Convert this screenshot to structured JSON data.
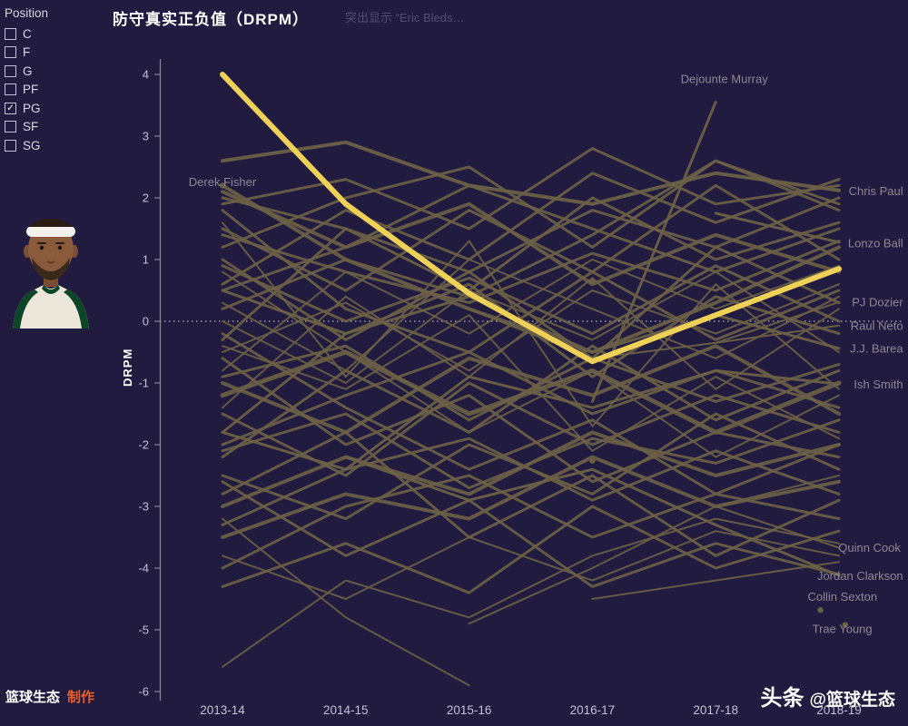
{
  "title": "防守真实正负值（DRPM）",
  "subtitle": "突出显示 “Eric Bleds…",
  "filter": {
    "title": "Position",
    "items": [
      {
        "label": "C",
        "checked": false
      },
      {
        "label": "F",
        "checked": false
      },
      {
        "label": "G",
        "checked": false
      },
      {
        "label": "PF",
        "checked": false
      },
      {
        "label": "PG",
        "checked": true
      },
      {
        "label": "SF",
        "checked": false
      },
      {
        "label": "SG",
        "checked": false
      }
    ]
  },
  "footer": {
    "brand": "篮球生态",
    "made_by": "制作",
    "toutiao": "头条",
    "handle": "@篮球生态"
  },
  "colors": {
    "background": "#211b3f",
    "line": "#6b6046",
    "highlight": "#f0d158",
    "label": "#8d8894",
    "axis_text": "#c6c1d6",
    "axis_line": "#8a8695",
    "title_text": "#ffffff",
    "subtitle_text": "#524d72",
    "accent_orange": "#e8602c"
  },
  "chart_data": {
    "type": "line",
    "title": "防守真实正负值（DRPM）",
    "xlabel": "",
    "ylabel": "DRPM",
    "ylim": [
      -6,
      4
    ],
    "yticks": [
      4,
      3,
      2,
      1,
      0,
      -1,
      -2,
      -3,
      -4,
      -5,
      -6
    ],
    "zero_line": true,
    "legend": "none",
    "x_categories": [
      "2013-14",
      "2014-15",
      "2015-16",
      "2016-17",
      "2017-18",
      "2018-19"
    ],
    "highlight_series": {
      "name": "Eric Bleds…",
      "values": [
        4.0,
        1.9,
        0.45,
        -0.65,
        0.1,
        0.85
      ]
    },
    "labeled_series": [
      {
        "name": "Chris Paul",
        "w": 4,
        "v": [
          2.6,
          2.9,
          2.2,
          1.9,
          2.4,
          2.12
        ]
      },
      {
        "name": "Lonzo Ball",
        "w": 3,
        "v": [
          null,
          null,
          null,
          null,
          1.75,
          1.28
        ]
      },
      {
        "name": "PJ Dozier",
        "w": 2,
        "v": [
          null,
          null,
          null,
          null,
          -0.35,
          0.31
        ]
      },
      {
        "name": "Raul Neto",
        "w": 2,
        "v": [
          null,
          null,
          0.2,
          -0.6,
          -0.35,
          -0.07
        ]
      },
      {
        "name": "J.J. Barea",
        "w": 3,
        "v": [
          0.5,
          -0.2,
          0.4,
          -0.5,
          0.1,
          -0.44
        ]
      },
      {
        "name": "Ish Smith",
        "w": 3,
        "v": [
          -1.8,
          -2.4,
          -0.9,
          -1.4,
          -0.8,
          -1.02
        ]
      },
      {
        "name": "Quinn Cook",
        "w": 2,
        "v": [
          null,
          null,
          null,
          null,
          -3.0,
          -3.67
        ]
      },
      {
        "name": "Jordan Clarkson",
        "w": 3,
        "v": [
          null,
          -2.2,
          -2.9,
          -2.4,
          -3.3,
          -4.12
        ]
      },
      {
        "name": "Dejounte Murray",
        "w": 3,
        "v": [
          null,
          null,
          null,
          -1.3,
          3.55,
          null
        ]
      }
    ],
    "background_series": [
      {
        "w": 4,
        "v": [
          2.2,
          1.0,
          0.2,
          -0.5,
          0.3,
          1.2
        ]
      },
      {
        "w": 3,
        "v": [
          1.9,
          2.3,
          1.5,
          2.8,
          1.9,
          2.2
        ]
      },
      {
        "w": 3,
        "v": [
          0.5,
          1.2,
          2.2,
          1.5,
          0.8,
          1.5
        ]
      },
      {
        "w": 2,
        "v": [
          -0.5,
          0.3,
          -0.8,
          0.5,
          -0.2,
          0.6
        ]
      },
      {
        "w": 3,
        "v": [
          1.0,
          -0.3,
          0.8,
          -0.6,
          1.2,
          0.3
        ]
      },
      {
        "w": 5,
        "v": [
          -1.2,
          -0.5,
          -1.5,
          -0.8,
          -1.8,
          -1.0
        ]
      },
      {
        "w": 3,
        "v": [
          -2.0,
          -1.2,
          -0.5,
          -1.5,
          -0.8,
          -1.4
        ]
      },
      {
        "w": 2,
        "v": [
          0.0,
          -1.0,
          0.5,
          -0.3,
          0.8,
          -0.5
        ]
      },
      {
        "w": 4,
        "v": [
          -3.0,
          -2.2,
          -2.8,
          -1.8,
          -2.5,
          -2.0
        ]
      },
      {
        "w": 3,
        "v": [
          -2.5,
          -3.2,
          -2.0,
          -2.8,
          -1.5,
          -2.4
        ]
      },
      {
        "w": 3,
        "v": [
          1.5,
          0.5,
          1.8,
          0.8,
          2.2,
          1.0
        ]
      },
      {
        "w": 2,
        "v": [
          -0.8,
          0.8,
          -0.2,
          1.0,
          0.2,
          0.9
        ]
      },
      {
        "w": 3,
        "v": [
          -1.5,
          -2.5,
          -1.0,
          -2.0,
          -1.2,
          -1.8
        ]
      },
      {
        "w": 4,
        "v": [
          -3.5,
          -2.8,
          -3.2,
          -2.2,
          -3.0,
          -2.6
        ]
      },
      {
        "w": 3,
        "v": [
          2.0,
          1.5,
          0.8,
          1.8,
          1.2,
          2.0
        ]
      },
      {
        "w": 3,
        "v": [
          -4.0,
          -3.0,
          -2.5,
          -3.5,
          -2.8,
          -3.2
        ]
      },
      {
        "w": 2,
        "v": [
          0.8,
          -0.5,
          -1.8,
          -0.8,
          -2.2,
          -1.2
        ]
      },
      {
        "w": 3,
        "v": [
          -0.3,
          1.5,
          0.5,
          2.0,
          1.0,
          1.6
        ]
      },
      {
        "w": 3,
        "v": [
          -2.8,
          -1.8,
          -3.5,
          -2.5,
          -3.8,
          -2.9
        ]
      },
      {
        "w": 2,
        "v": [
          -5.6,
          -4.2,
          -4.8,
          -3.8,
          -3.2,
          -3.6
        ]
      },
      {
        "w": 3,
        "v": [
          1.2,
          2.0,
          2.5,
          1.2,
          2.6,
          1.8
        ]
      },
      {
        "w": 4,
        "v": [
          -1.0,
          -1.8,
          -0.6,
          -1.2,
          -0.4,
          -1.5
        ]
      },
      {
        "w": 2,
        "v": [
          0.3,
          -0.8,
          1.0,
          0.2,
          -0.6,
          0.4
        ]
      },
      {
        "w": 3,
        "v": [
          -2.2,
          -0.8,
          -1.8,
          -0.4,
          -1.6,
          -0.8
        ]
      },
      {
        "w": 3,
        "v": [
          -0.6,
          -2.0,
          -1.2,
          -2.6,
          -1.8,
          -2.2
        ]
      },
      {
        "w": 3,
        "v": [
          1.8,
          0.2,
          -0.5,
          0.8,
          -0.3,
          0.5
        ]
      },
      {
        "w": 2,
        "v": [
          -3.8,
          -4.5,
          -3.5,
          -4.2,
          -3.4,
          -3.8
        ]
      },
      {
        "w": 3,
        "v": [
          -1.8,
          -0.2,
          0.6,
          -0.9,
          0.4,
          -0.2
        ]
      },
      {
        "w": 3,
        "v": [
          0.6,
          1.8,
          1.0,
          2.4,
          1.6,
          2.3
        ]
      },
      {
        "w": 3,
        "v": [
          -4.3,
          -3.6,
          -4.4,
          -3.0,
          -4.0,
          -3.4
        ]
      },
      {
        "w": 4,
        "v": [
          2.1,
          1.2,
          1.9,
          0.6,
          1.4,
          0.8
        ]
      },
      {
        "w": 3,
        "v": [
          -0.2,
          -1.4,
          -2.4,
          -1.6,
          -2.8,
          -2.0
        ]
      },
      {
        "w": 2,
        "v": [
          -1.4,
          0.4,
          -0.9,
          0.7,
          -1.1,
          0.2
        ]
      },
      {
        "w": 3,
        "v": [
          -2.6,
          -3.8,
          -2.9,
          -4.3,
          -3.6,
          -4.1
        ]
      },
      {
        "w": 2,
        "v": [
          null,
          null,
          -4.9,
          -4.0,
          -3.0,
          -2.5
        ]
      },
      {
        "w": 2,
        "v": [
          -3.2,
          -4.8,
          -5.9,
          null,
          null,
          null
        ]
      },
      {
        "w": 3,
        "v": [
          0.9,
          0.0,
          0.7,
          -0.2,
          0.9,
          0.0
        ]
      },
      {
        "w": 3,
        "v": [
          -0.9,
          -0.4,
          -1.6,
          -0.6,
          -1.3,
          -0.7
        ]
      },
      {
        "w": 3,
        "v": [
          1.4,
          0.8,
          0.3,
          1.1,
          0.5,
          1.3
        ]
      },
      {
        "w": 3,
        "v": [
          -2.1,
          -1.5,
          -2.7,
          -1.9,
          -2.3,
          -1.6
        ]
      },
      {
        "w": 2,
        "v": [
          null,
          null,
          null,
          -4.5,
          -4.2,
          -3.9
        ]
      },
      {
        "w": 3,
        "v": [
          0.2,
          1.0,
          0.4,
          1.4,
          2.6,
          1.9
        ]
      },
      {
        "w": 2,
        "v": [
          -0.4,
          -1.1,
          0.1,
          -2.1,
          -0.9,
          -1.9
        ]
      },
      {
        "w": 3,
        "v": [
          -3.3,
          -2.4,
          -1.9,
          -2.9,
          -2.1,
          -2.8
        ]
      },
      {
        "w": 2,
        "v": [
          1.6,
          -0.9,
          1.3,
          -1.7,
          0.6,
          -1.1
        ]
      }
    ],
    "points": [
      {
        "x": 0,
        "y": 2.2
      },
      {
        "x": 3,
        "y": 0.65
      },
      {
        "x": 3,
        "y": -2.26
      },
      {
        "x": 4.85,
        "y": -4.68
      },
      {
        "x": 5.05,
        "y": -4.92
      }
    ],
    "annotations": [
      {
        "text": "Derek Fisher",
        "x": 0,
        "y": 2.25,
        "anchor": "middle"
      },
      {
        "text": "Dejounte Murray",
        "x": 4.07,
        "y": 3.92,
        "anchor": "middle"
      },
      {
        "text": "Chris Paul",
        "x": 5.52,
        "y": 2.1,
        "anchor": "end"
      },
      {
        "text": "Lonzo Ball",
        "x": 5.52,
        "y": 1.26,
        "anchor": "end"
      },
      {
        "text": "PJ Dozier",
        "x": 5.52,
        "y": 0.3,
        "anchor": "end"
      },
      {
        "text": "Raul Neto",
        "x": 5.52,
        "y": -0.08,
        "anchor": "end"
      },
      {
        "text": "J.J. Barea",
        "x": 5.52,
        "y": -0.45,
        "anchor": "end"
      },
      {
        "text": "Ish Smith",
        "x": 5.52,
        "y": -1.03,
        "anchor": "end"
      },
      {
        "text": "Quinn Cook",
        "x": 5.5,
        "y": -3.68,
        "anchor": "end"
      },
      {
        "text": "Jordan Clarkson",
        "x": 5.52,
        "y": -4.13,
        "anchor": "end"
      },
      {
        "text": "Collin Sexton",
        "x": 5.31,
        "y": -4.47,
        "anchor": "end"
      },
      {
        "text": "Trae Young",
        "x": 5.27,
        "y": -4.99,
        "anchor": "end"
      }
    ]
  }
}
